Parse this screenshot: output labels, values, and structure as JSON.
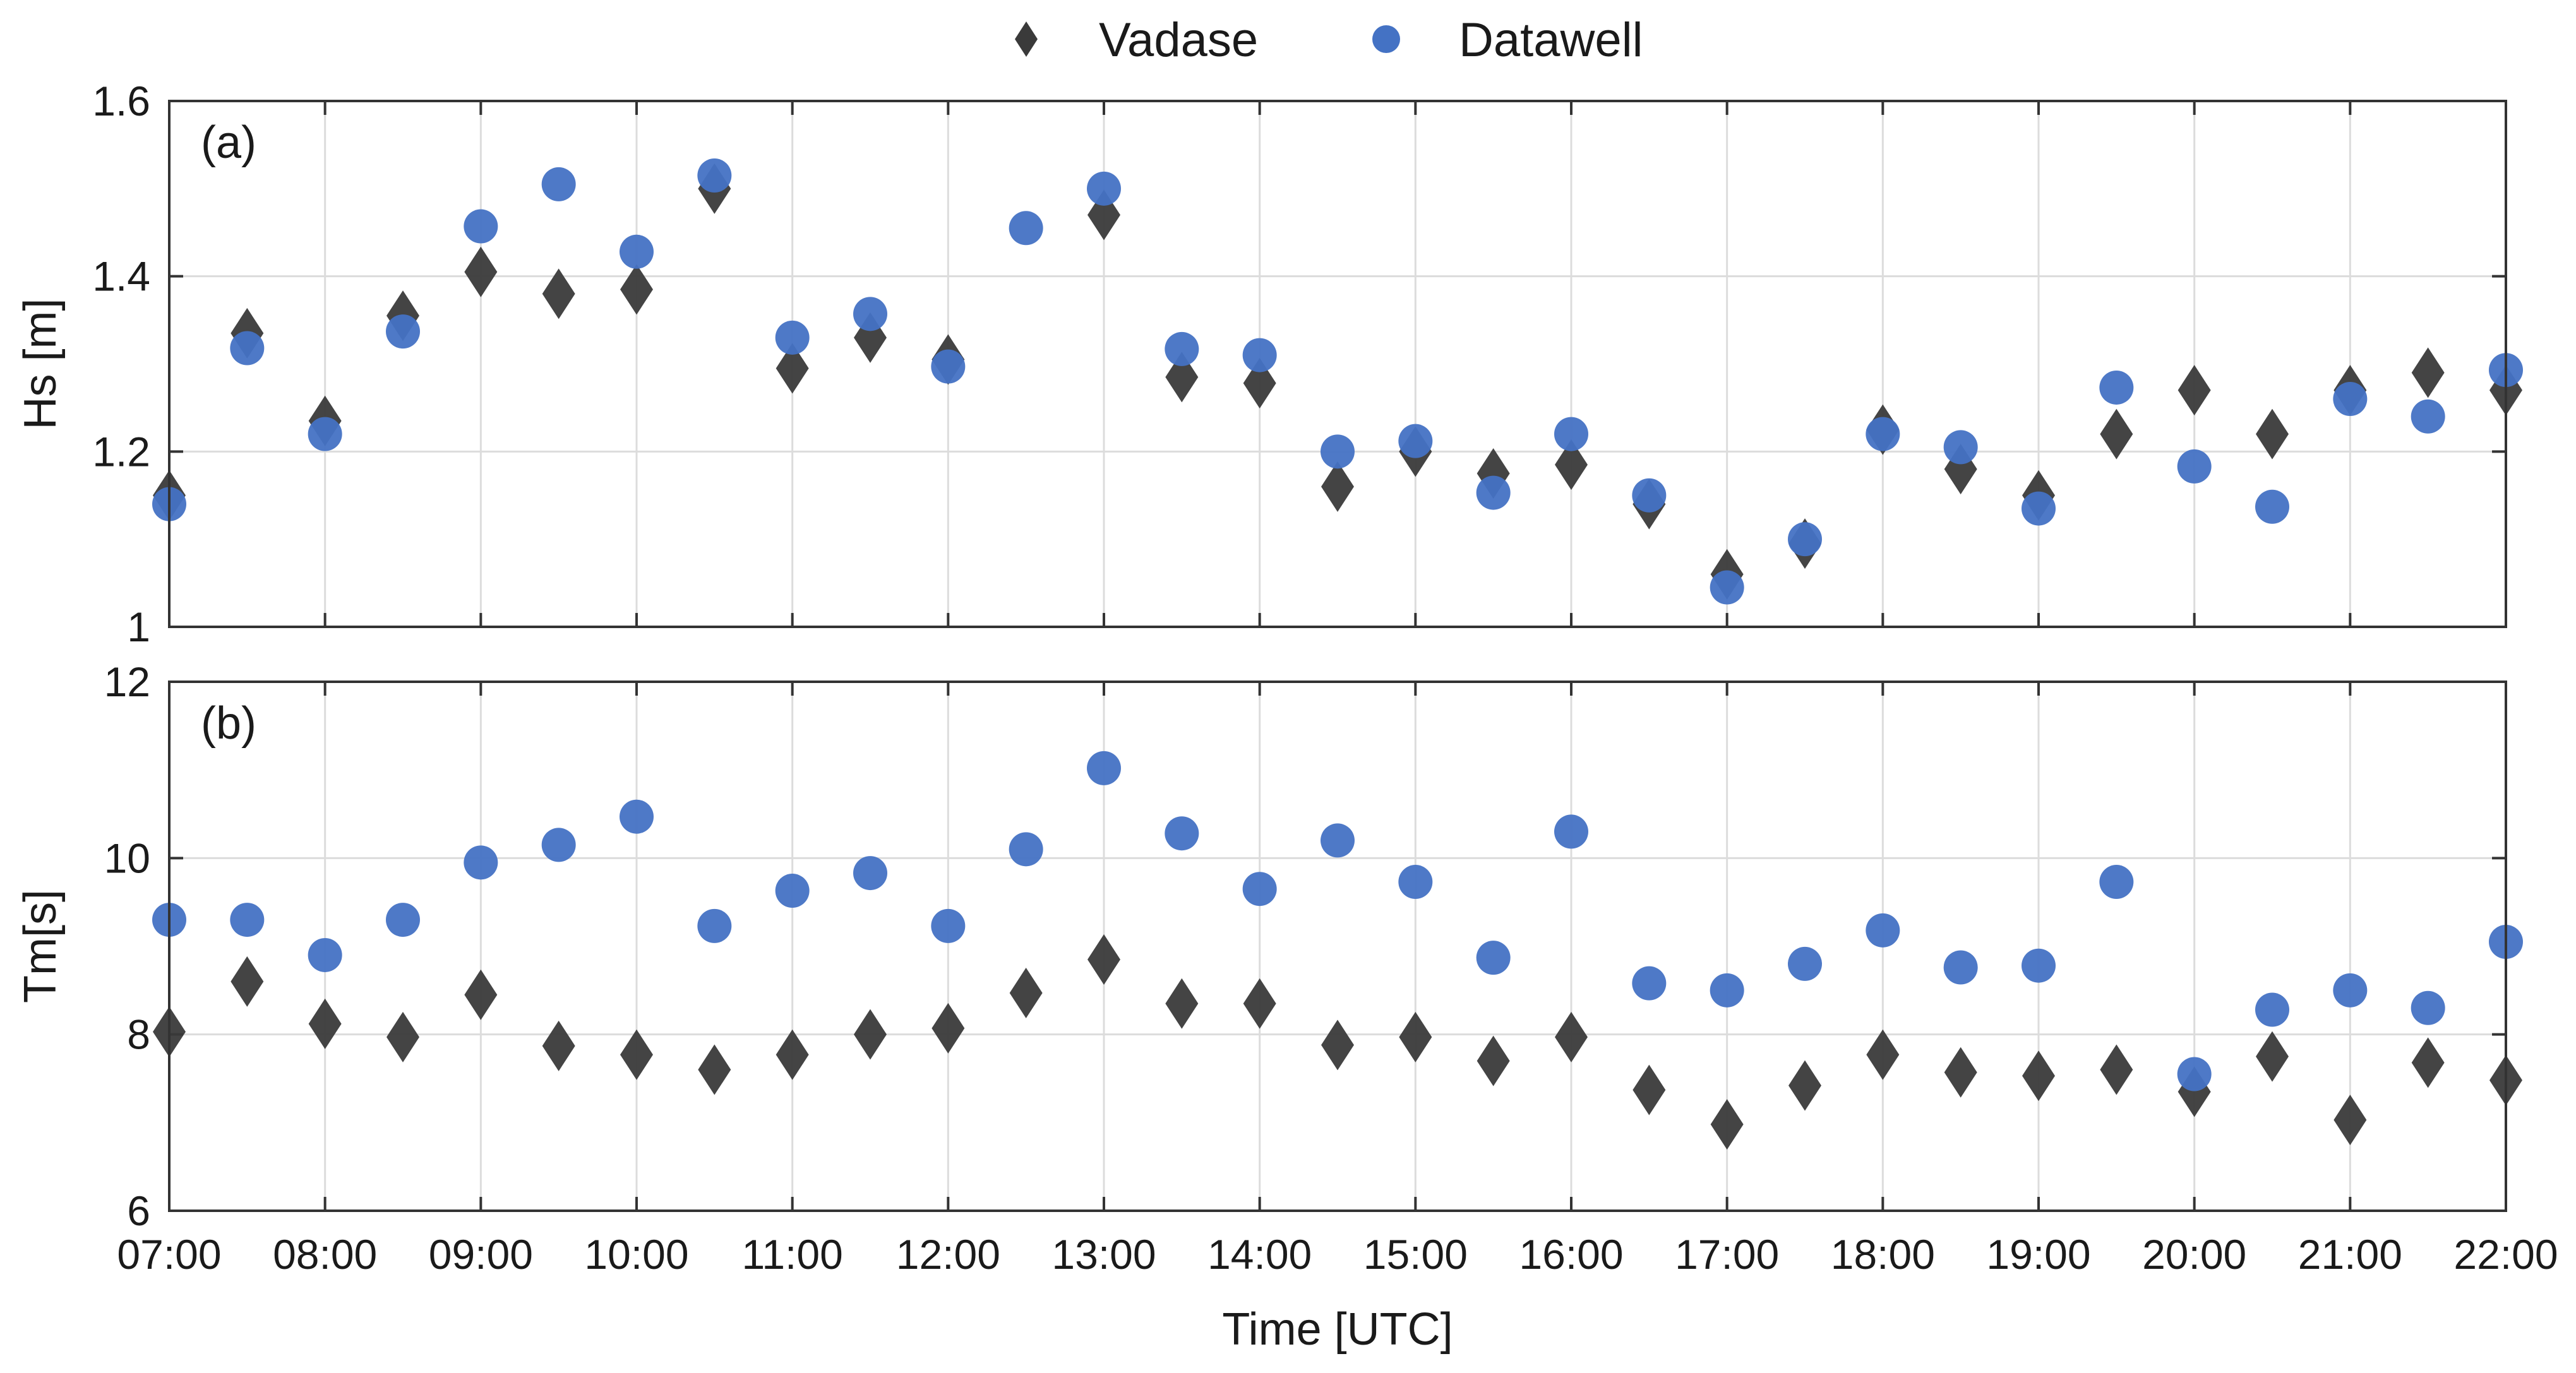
{
  "chart_data": [
    {
      "type": "scatter",
      "panel_label": "(a)",
      "ylabel": "Hs [m]",
      "xlabel": "",
      "ylim": [
        1,
        1.6
      ],
      "yticks": [
        1,
        1.2,
        1.4,
        1.6
      ],
      "ytick_labels": [
        "1",
        "1.2",
        "1.4",
        "1.6"
      ],
      "grid": true,
      "x": [
        7,
        7.5,
        8,
        8.5,
        9,
        9.5,
        10,
        10.5,
        11,
        11.5,
        12,
        12.5,
        13,
        13.5,
        14,
        14.5,
        15,
        15.5,
        16,
        16.5,
        17,
        17.5,
        18,
        18.5,
        19,
        19.5,
        20,
        20.5,
        21,
        21.5,
        22
      ],
      "series": [
        {
          "name": "Vadase",
          "marker": "diamond",
          "color": "#3a3a3a",
          "values": [
            1.15,
            1.335,
            1.235,
            1.355,
            1.405,
            1.38,
            1.385,
            1.5,
            1.295,
            1.33,
            1.305,
            null,
            1.47,
            1.285,
            1.278,
            1.16,
            1.2,
            1.175,
            1.185,
            1.14,
            1.06,
            1.095,
            1.225,
            1.18,
            1.15,
            1.22,
            1.27,
            1.22,
            1.27,
            1.29,
            1.27
          ]
        },
        {
          "name": "Datawell",
          "marker": "circle",
          "color": "#4472c4",
          "values": [
            1.14,
            1.318,
            1.22,
            1.337,
            1.457,
            1.505,
            1.428,
            1.515,
            1.33,
            1.357,
            1.297,
            1.455,
            1.5,
            1.317,
            1.31,
            1.2,
            1.212,
            1.153,
            1.22,
            1.15,
            1.045,
            1.1,
            1.22,
            1.205,
            1.135,
            1.273,
            1.183,
            1.137,
            1.26,
            1.24,
            1.293
          ]
        }
      ]
    },
    {
      "type": "scatter",
      "panel_label": "(b)",
      "ylabel": "Tm[s]",
      "xlabel": "Time [UTC]",
      "ylim": [
        6,
        12
      ],
      "yticks": [
        6,
        8,
        10,
        12
      ],
      "ytick_labels": [
        "6",
        "8",
        "10",
        "12"
      ],
      "grid": true,
      "x": [
        7,
        7.5,
        8,
        8.5,
        9,
        9.5,
        10,
        10.5,
        11,
        11.5,
        12,
        12.5,
        13,
        13.5,
        14,
        14.5,
        15,
        15.5,
        16,
        16.5,
        17,
        17.5,
        18,
        18.5,
        19,
        19.5,
        20,
        20.5,
        21,
        21.5,
        22
      ],
      "series": [
        {
          "name": "Vadase",
          "marker": "diamond",
          "color": "#3a3a3a",
          "values": [
            8.03,
            8.6,
            8.12,
            7.97,
            8.45,
            7.87,
            7.77,
            7.6,
            7.77,
            8.0,
            8.07,
            8.47,
            8.85,
            8.35,
            8.35,
            7.88,
            7.97,
            7.7,
            7.97,
            7.37,
            6.98,
            7.42,
            7.77,
            7.57,
            7.53,
            7.6,
            7.35,
            7.75,
            7.03,
            7.68,
            7.48
          ]
        },
        {
          "name": "Datawell",
          "marker": "circle",
          "color": "#4472c4",
          "values": [
            9.3,
            9.3,
            8.9,
            9.3,
            9.95,
            10.15,
            10.47,
            9.23,
            9.63,
            9.83,
            9.23,
            10.1,
            11.02,
            10.28,
            9.65,
            10.2,
            9.73,
            8.87,
            10.3,
            8.58,
            8.5,
            8.8,
            9.18,
            8.76,
            8.78,
            9.73,
            7.55,
            8.28,
            8.5,
            8.3,
            9.05
          ]
        }
      ]
    }
  ],
  "x_axis": {
    "range": [
      7,
      22
    ],
    "ticks": [
      7,
      8,
      9,
      10,
      11,
      12,
      13,
      14,
      15,
      16,
      17,
      18,
      19,
      20,
      21,
      22
    ],
    "tick_labels": [
      "07:00",
      "08:00",
      "09:00",
      "10:00",
      "11:00",
      "12:00",
      "13:00",
      "14:00",
      "15:00",
      "16:00",
      "17:00",
      "18:00",
      "19:00",
      "20:00",
      "21:00",
      "22:00"
    ],
    "title": "Time [UTC]"
  },
  "legend": {
    "placement": "top-center",
    "items": [
      {
        "label": "Vadase",
        "marker": "diamond",
        "color": "#3a3a3a"
      },
      {
        "label": "Datawell",
        "marker": "circle",
        "color": "#4472c4"
      }
    ]
  }
}
